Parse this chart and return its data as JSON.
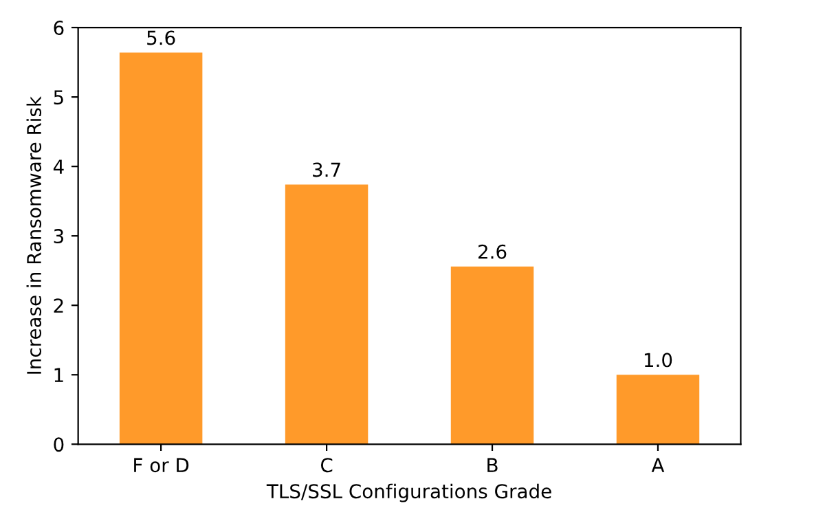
{
  "chart_data": {
    "type": "bar",
    "xlabel": "TLS/SSL Configurations Grade",
    "ylabel": "Increase in Ransomware Risk",
    "categories": [
      "F or D",
      "C",
      "B",
      "A"
    ],
    "values": [
      5.64,
      3.74,
      2.56,
      1.0
    ],
    "value_labels": [
      "5.6",
      "3.7",
      "2.6",
      "1.0"
    ],
    "color": "#ff9a2a",
    "ylim": [
      0,
      6
    ],
    "yticks": [
      0,
      1,
      2,
      3,
      4,
      5,
      6
    ],
    "grid": false,
    "legend": false
  }
}
